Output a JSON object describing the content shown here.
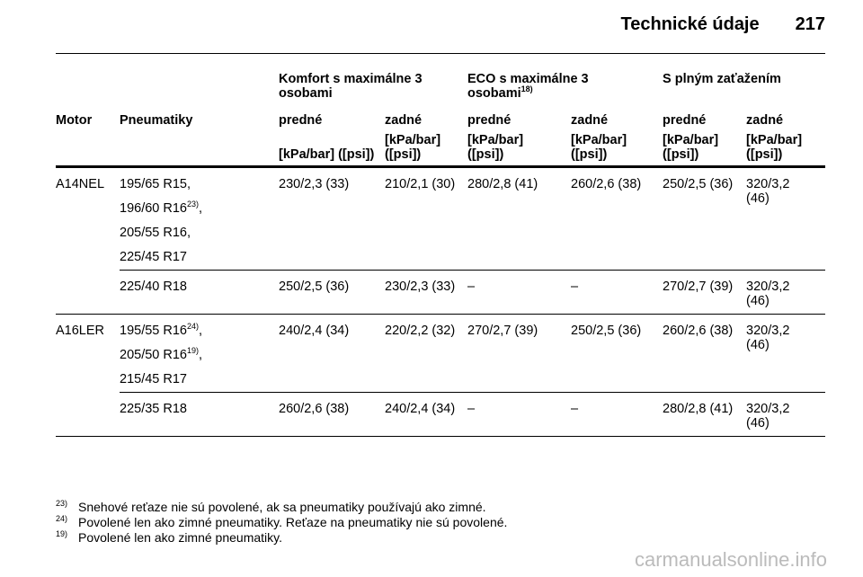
{
  "header": {
    "title": "Technické údaje",
    "page": "217"
  },
  "table": {
    "groups": [
      [
        "Komfort s maximálne 3 osobami"
      ],
      [
        "ECO s maximálne 3 osobami",
        {
          "sup": "18)"
        }
      ],
      [
        "S plným zaťažením"
      ]
    ],
    "columns": [
      "Motor",
      "Pneumatiky",
      "predné",
      "zadné",
      "predné",
      "zadné",
      "predné",
      "zadné"
    ],
    "units": [
      "[kPa/bar] ([psi])",
      "[kPa/bar] ([psi])",
      "[kPa/bar] ([psi])",
      "[kPa/bar] ([psi])",
      "[kPa/bar] ([psi])",
      "[kPa/bar] ([psi])"
    ],
    "rows": [
      {
        "motor": "A14NEL",
        "tires": [
          [
            "195/65 R15,"
          ],
          [
            "196/60 R16",
            {
              "sup": "23)"
            },
            ","
          ],
          [
            "205/55 R16,"
          ],
          [
            "225/45 R17"
          ]
        ],
        "values": [
          "230/2,3 (33)",
          "210/2,1 (30)",
          "280/2,8 (41)",
          "260/2,6 (38)",
          "250/2,5 (36)",
          "320/3,2 (46)"
        ]
      },
      {
        "tires": [
          [
            "225/40 R18"
          ]
        ],
        "values": [
          "250/2,5 (36)",
          "230/2,3 (33)",
          "–",
          "–",
          "270/2,7 (39)",
          "320/3,2 (46)"
        ]
      },
      {
        "motor": "A16LER",
        "tires": [
          [
            "195/55 R16",
            {
              "sup": "24)"
            },
            ","
          ],
          [
            "205/50 R16",
            {
              "sup": "19)"
            },
            ","
          ],
          [
            "215/45 R17"
          ]
        ],
        "values": [
          "240/2,4 (34)",
          "220/2,2 (32)",
          "270/2,7 (39)",
          "250/2,5 (36)",
          "260/2,6 (38)",
          "320/3,2 (46)"
        ]
      },
      {
        "tires": [
          [
            "225/35 R18"
          ]
        ],
        "values": [
          "260/2,6 (38)",
          "240/2,4 (34)",
          "–",
          "–",
          "280/2,8 (41)",
          "320/3,2 (46)"
        ]
      }
    ]
  },
  "footnotes": [
    {
      "mark": "23)",
      "text": "Snehové reťaze nie sú povolené, ak sa pneumatiky používajú ako zimné."
    },
    {
      "mark": "24)",
      "text": "Povolené len ako zimné pneumatiky. Reťaze na pneumatiky nie sú povolené."
    },
    {
      "mark": "19)",
      "text": "Povolené len ako zimné pneumatiky."
    }
  ],
  "watermark": "carmanualsonline.info"
}
